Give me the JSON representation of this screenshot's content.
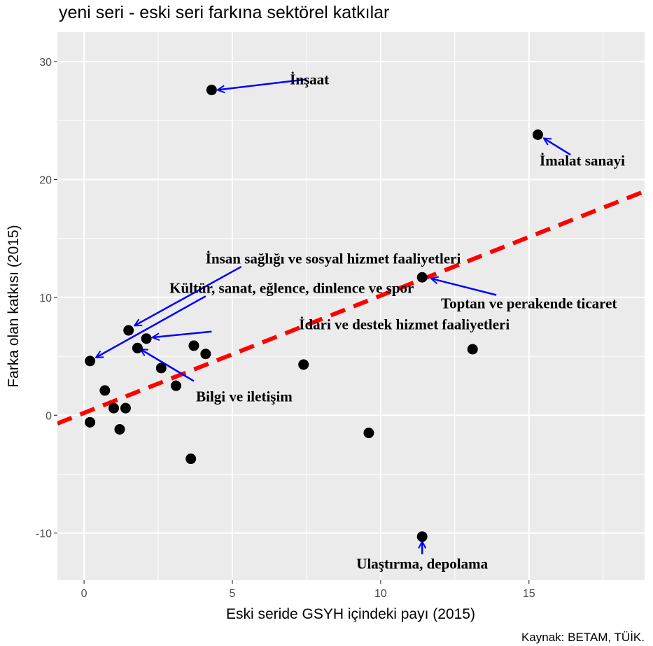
{
  "title": "yeni seri - eski seri farkına sektörel katkılar",
  "caption": "Kaynak: BETAM, TÜİK.",
  "colors": {
    "panel": "#ebebeb",
    "grid": "#ffffff",
    "point": "#000000",
    "fit_line": "#ff0000",
    "arrow": "#0000ff"
  },
  "chart_data": {
    "type": "scatter",
    "xlabel": "Eski seride GSYH içindeki payı (2015)",
    "ylabel": "Farka olan katkısı (2015)",
    "xlim": [
      -0.9,
      18.9
    ],
    "ylim": [
      -14,
      32.5
    ],
    "x_ticks": [
      0,
      5,
      10,
      15
    ],
    "y_ticks": [
      -10,
      0,
      10,
      20,
      30
    ],
    "grid": true,
    "legend": "none",
    "points": [
      {
        "x": 4.3,
        "y": 27.6
      },
      {
        "x": 15.3,
        "y": 23.8
      },
      {
        "x": 11.4,
        "y": 11.7
      },
      {
        "x": 1.5,
        "y": 7.2
      },
      {
        "x": 0.2,
        "y": 4.6
      },
      {
        "x": 2.1,
        "y": 6.5
      },
      {
        "x": 1.8,
        "y": 5.7
      },
      {
        "x": 3.7,
        "y": 5.9
      },
      {
        "x": 4.1,
        "y": 5.2
      },
      {
        "x": 2.6,
        "y": 4.0
      },
      {
        "x": 3.1,
        "y": 2.5
      },
      {
        "x": 0.7,
        "y": 2.1
      },
      {
        "x": 1.0,
        "y": 0.6
      },
      {
        "x": 1.4,
        "y": 0.6
      },
      {
        "x": 0.2,
        "y": -0.6
      },
      {
        "x": 1.2,
        "y": -1.2
      },
      {
        "x": 3.6,
        "y": -3.7
      },
      {
        "x": 7.4,
        "y": 4.3
      },
      {
        "x": 9.6,
        "y": -1.5
      },
      {
        "x": 13.1,
        "y": 5.6
      },
      {
        "x": 11.4,
        "y": -10.3
      }
    ],
    "fit_line": {
      "style": "dashed",
      "from": {
        "x": -0.9,
        "y": -0.7
      },
      "to": {
        "x": 18.9,
        "y": 19.0
      }
    },
    "annotations": [
      {
        "text": "İnşaat",
        "label_x": 7.6,
        "label_y": 28.5,
        "tail_x": 7.5,
        "tail_y": 28.5,
        "point_x": 4.5,
        "point_y": 27.6
      },
      {
        "text": "İmalat sanayi",
        "label_x": 16.8,
        "label_y": 21.6,
        "tail_x": 16.4,
        "tail_y": 22.1,
        "point_x": 15.5,
        "point_y": 23.5
      },
      {
        "text": "İnsan sağlığı ve sosyal hizmet faaliyetleri",
        "label_x": 8.4,
        "label_y": 13.3,
        "tail_x": 5.3,
        "tail_y": 12.6,
        "point_x": 1.7,
        "point_y": 7.6
      },
      {
        "text": "Kültür, sanat, eğlence, dinlence ve spor",
        "label_x": 7.0,
        "label_y": 10.8,
        "tail_x": 4.1,
        "tail_y": 10.1,
        "point_x": 0.4,
        "point_y": 4.9
      },
      {
        "text": "İdari ve destek hizmet faaliyetleri",
        "label_x": 10.8,
        "label_y": 7.7,
        "tail_x": 4.3,
        "tail_y": 7.1,
        "point_x": 2.3,
        "point_y": 6.6
      },
      {
        "text": "Toptan ve perakende ticaret",
        "label_x": 15.0,
        "label_y": 9.5,
        "tail_x": 13.9,
        "tail_y": 10.2,
        "point_x": 11.7,
        "point_y": 11.6
      },
      {
        "text": "Bilgi ve iletişim",
        "label_x": 5.4,
        "label_y": 1.6,
        "tail_x": 3.7,
        "tail_y": 2.9,
        "point_x": 1.9,
        "point_y": 5.6
      },
      {
        "text": "Ulaştırma, depolama",
        "label_x": 11.4,
        "label_y": -12.6,
        "tail_x": 11.4,
        "tail_y": -11.8,
        "point_x": 11.4,
        "point_y": -10.7
      }
    ]
  }
}
